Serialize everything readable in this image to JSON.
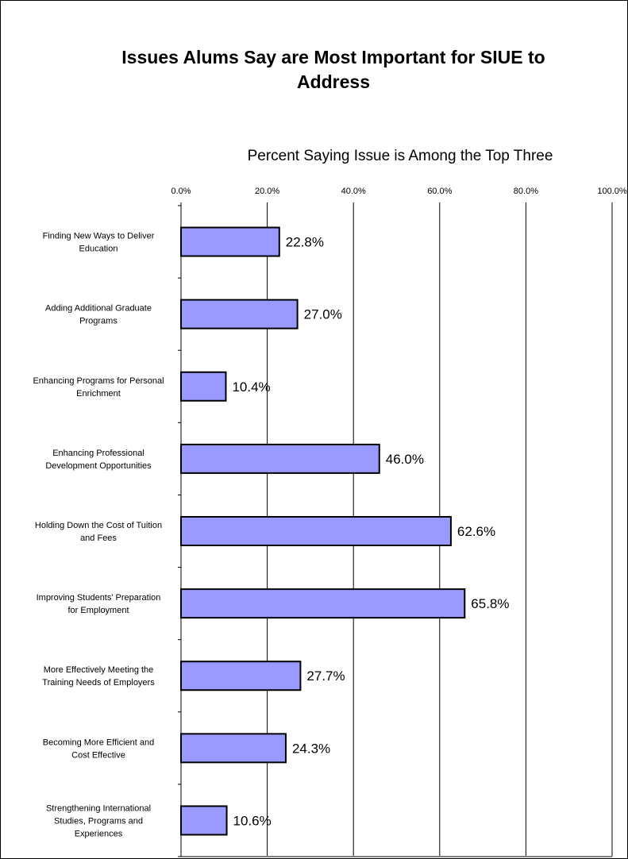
{
  "chart_data": {
    "type": "bar",
    "orientation": "horizontal",
    "title_lines": [
      "Issues Alums Say are Most Important for SIUE to",
      "Address"
    ],
    "xlabel": "Percent Saying Issue is Among the Top Three",
    "xlim": [
      0,
      100
    ],
    "x_ticks": [
      0,
      20,
      40,
      60,
      80,
      100
    ],
    "x_tick_labels": [
      "0.0%",
      "20.0%",
      "40.0%",
      "60.0%",
      "80.0%",
      "100.0%"
    ],
    "grid": true,
    "legend": "none",
    "bar_color": "#9999ff",
    "categories": [
      [
        "Finding New Ways to Deliver",
        "Education"
      ],
      [
        "Adding Additional Graduate",
        "Programs"
      ],
      [
        "Enhancing Programs for Personal",
        "Enrichment"
      ],
      [
        "Enhancing Professional",
        "Development Opportunities"
      ],
      [
        "Holding Down the Cost of Tuition",
        "and Fees"
      ],
      [
        "Improving Students' Preparation",
        "for Employment"
      ],
      [
        "More Effectively Meeting the",
        "Training Needs of Employers"
      ],
      [
        "Becoming More Efficient and",
        "Cost Effective"
      ],
      [
        "Strengthening International",
        "Studies, Programs and",
        "Experiences"
      ]
    ],
    "values": [
      22.8,
      27.0,
      10.4,
      46.0,
      62.6,
      65.8,
      27.7,
      24.3,
      10.6
    ],
    "value_labels": [
      "22.8%",
      "27.0%",
      "10.4%",
      "46.0%",
      "62.6%",
      "65.8%",
      "27.7%",
      "24.3%",
      "10.6%"
    ]
  }
}
